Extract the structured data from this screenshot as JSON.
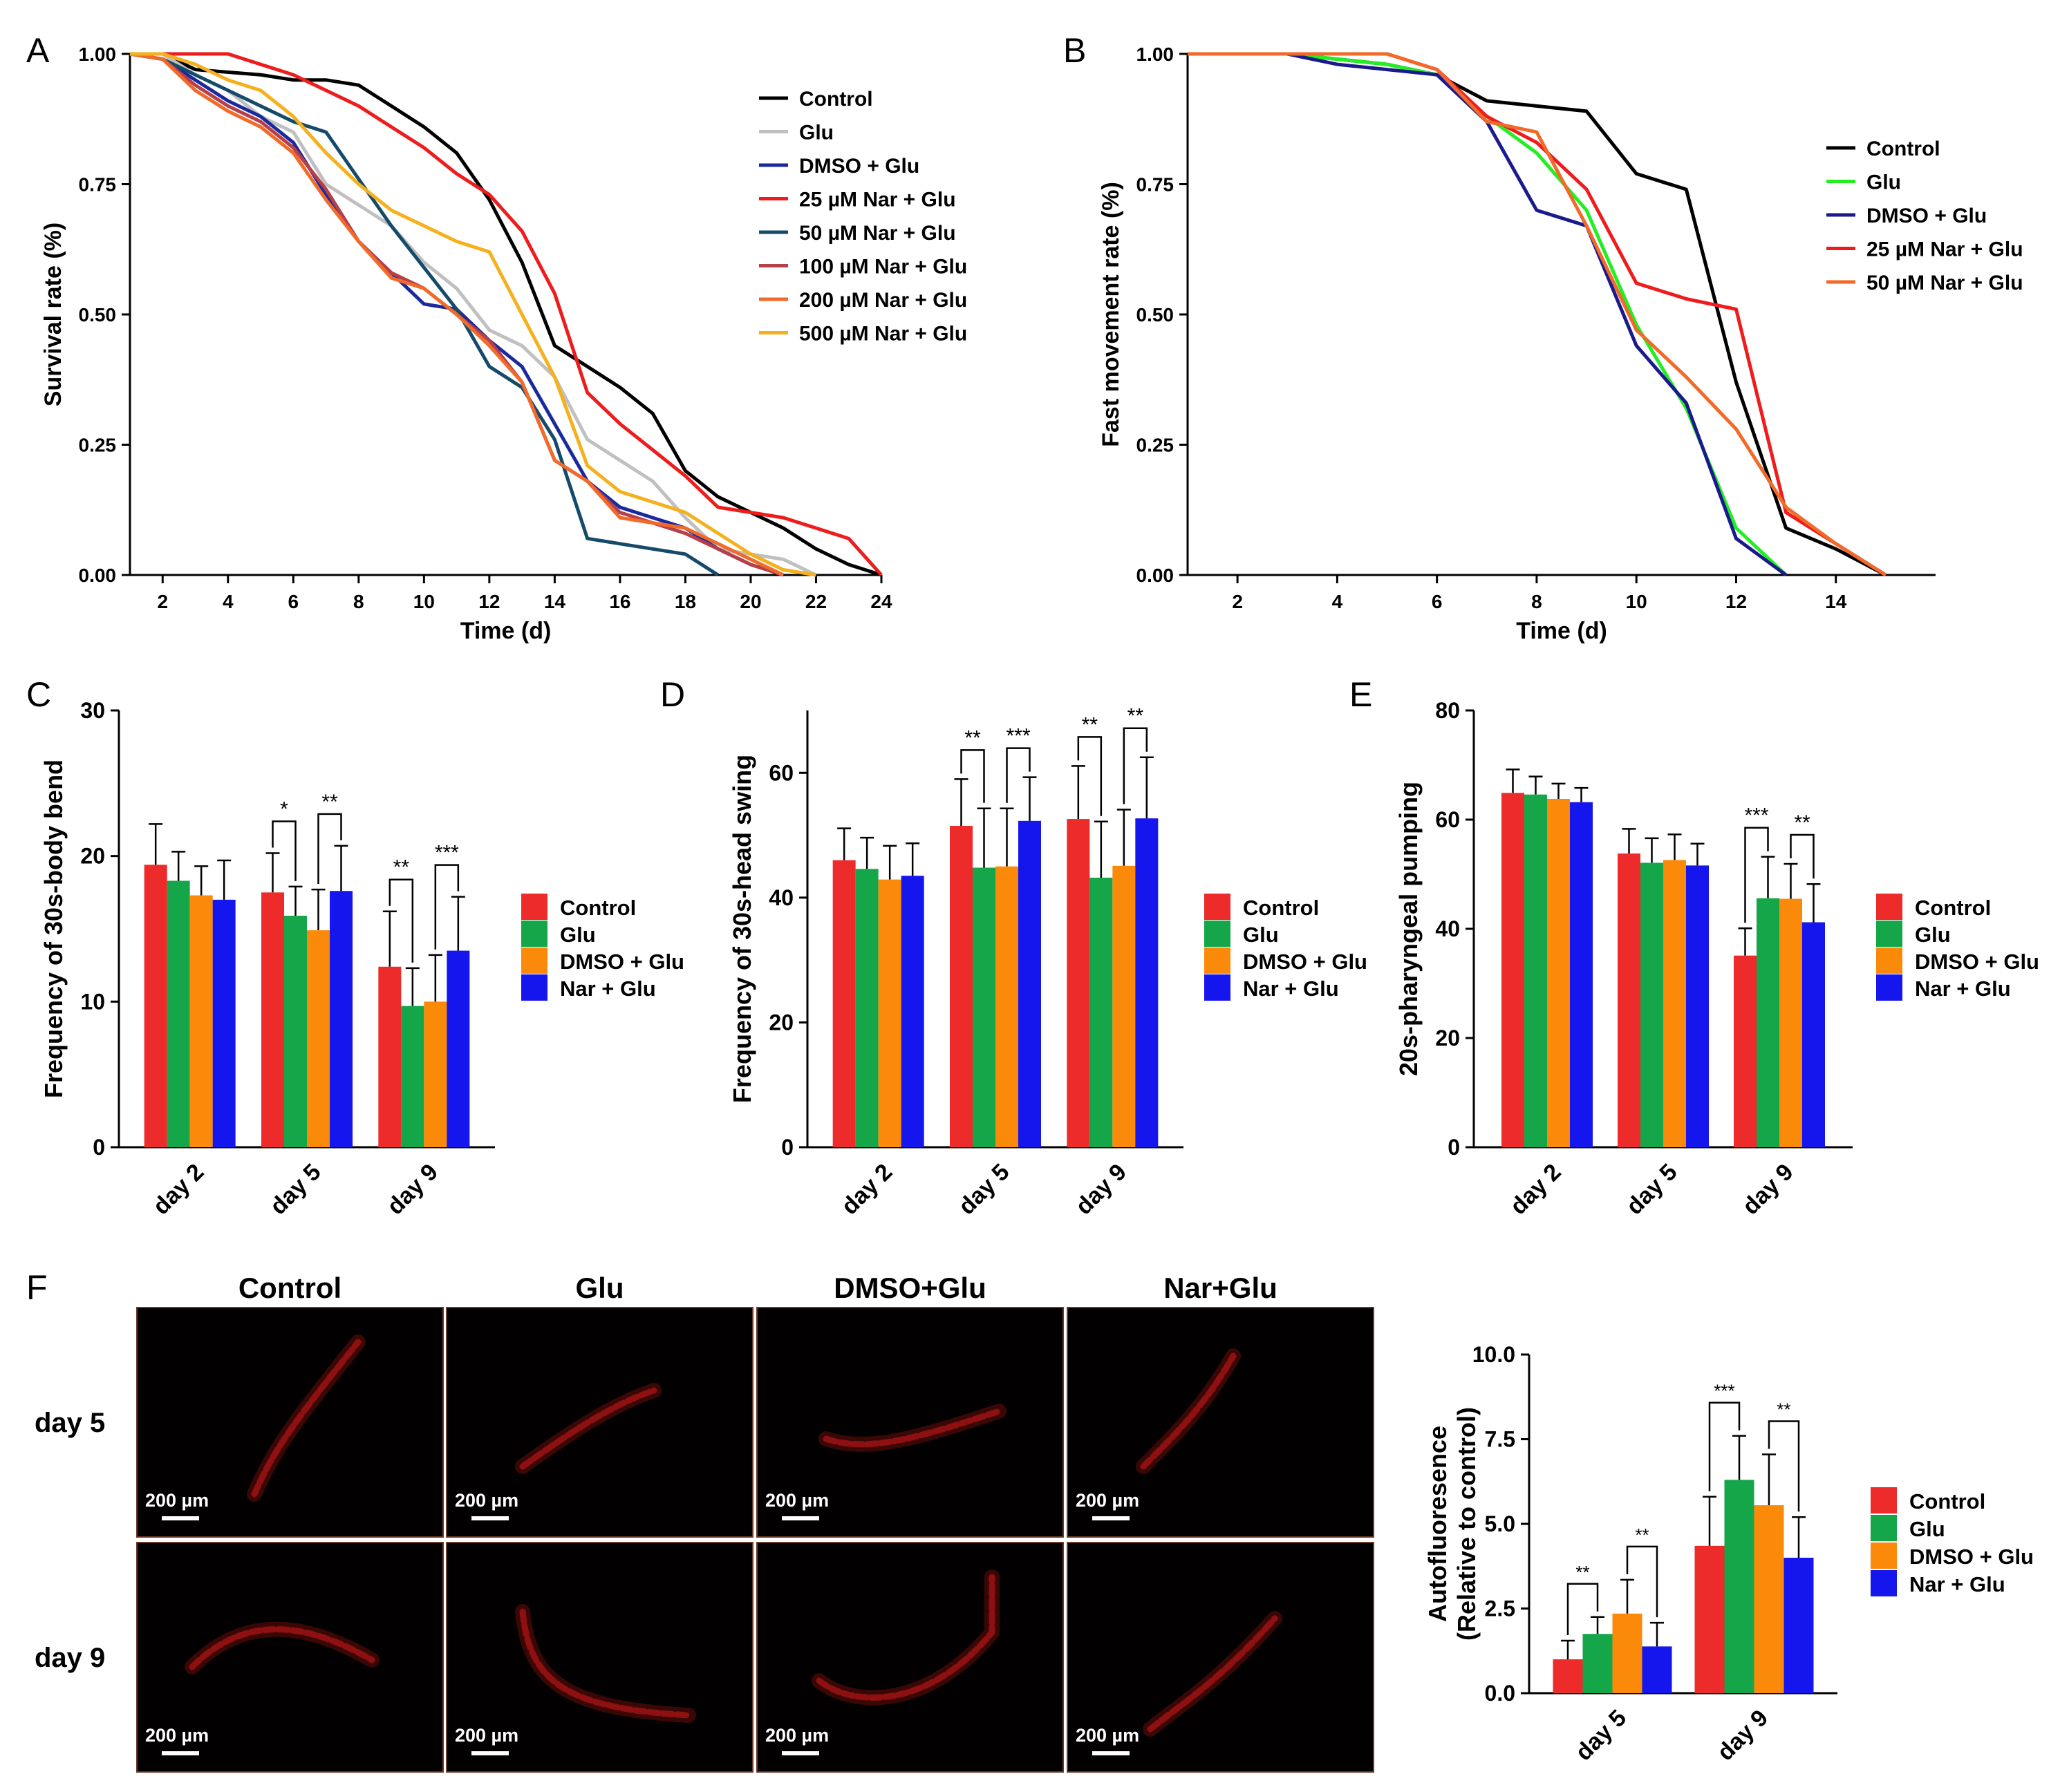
{
  "figure": {
    "panel_letters": [
      "A",
      "B",
      "C",
      "D",
      "E",
      "F"
    ],
    "micro": {
      "columns": [
        "Control",
        "Glu",
        "DMSO+Glu",
        "Nar+Glu"
      ],
      "rows": [
        "day 5",
        "day 9"
      ],
      "scale_bar": "200 µm"
    }
  },
  "chart_data": [
    {
      "panel": "A",
      "type": "line",
      "xlabel": "Time (d)",
      "ylabel": "Survival rate (%)",
      "xlim": [
        1,
        24
      ],
      "ylim": [
        0,
        1
      ],
      "xticks": [
        2,
        4,
        6,
        8,
        10,
        12,
        14,
        16,
        18,
        20,
        22,
        24
      ],
      "yticks": [
        0,
        0.25,
        0.5,
        0.75,
        1
      ],
      "ytick_labels": [
        "0.00",
        "0.25",
        "0.50",
        "0.75",
        "1.00"
      ],
      "legend_position": "top-right",
      "series": [
        {
          "name": "Control",
          "color": "#000000",
          "x": [
            1,
            2,
            3,
            5,
            6,
            7,
            8,
            9,
            10,
            11,
            12,
            13,
            14,
            15,
            16,
            17,
            18,
            19,
            20,
            21,
            22,
            23,
            24
          ],
          "y": [
            1,
            1,
            0.97,
            0.96,
            0.95,
            0.95,
            0.94,
            0.9,
            0.86,
            0.81,
            0.72,
            0.6,
            0.44,
            0.4,
            0.36,
            0.31,
            0.2,
            0.15,
            0.12,
            0.09,
            0.05,
            0.02,
            0
          ]
        },
        {
          "name": "Glu",
          "color": "#c0c0c0",
          "x": [
            1,
            2,
            3,
            4,
            5,
            6,
            7,
            8,
            9,
            10,
            11,
            12,
            13,
            14,
            15,
            16,
            17,
            18,
            19,
            20,
            21,
            22
          ],
          "y": [
            1,
            1,
            0.96,
            0.93,
            0.88,
            0.85,
            0.75,
            0.71,
            0.67,
            0.6,
            0.55,
            0.47,
            0.44,
            0.38,
            0.26,
            0.22,
            0.18,
            0.11,
            0.05,
            0.04,
            0.03,
            0
          ]
        },
        {
          "name": "DMSO + Glu",
          "color": "#1a2a9c",
          "x": [
            1,
            2,
            3,
            4,
            5,
            6,
            7,
            8,
            9,
            10,
            11,
            12,
            13,
            14,
            15,
            16,
            17,
            18,
            19,
            20,
            21
          ],
          "y": [
            1,
            0.99,
            0.95,
            0.91,
            0.88,
            0.83,
            0.73,
            0.64,
            0.58,
            0.52,
            0.51,
            0.45,
            0.4,
            0.29,
            0.18,
            0.13,
            0.11,
            0.09,
            0.05,
            0.02,
            0
          ]
        },
        {
          "name": "25 µM Nar + Glu",
          "color": "#ee1c1c",
          "x": [
            1,
            2,
            3,
            4,
            5,
            6,
            7,
            8,
            9,
            10,
            11,
            12,
            13,
            14,
            15,
            16,
            17,
            18,
            19,
            20,
            21,
            22,
            23,
            24
          ],
          "y": [
            1,
            1,
            1,
            1,
            0.98,
            0.96,
            0.93,
            0.9,
            0.86,
            0.82,
            0.77,
            0.73,
            0.66,
            0.54,
            0.35,
            0.29,
            0.24,
            0.19,
            0.13,
            0.12,
            0.11,
            0.09,
            0.07,
            0
          ]
        },
        {
          "name": "50 µM Nar + Glu",
          "color": "#154a6a",
          "x": [
            1,
            2,
            3,
            4,
            5,
            6,
            7,
            8,
            9,
            10,
            11,
            12,
            13,
            14,
            15,
            16,
            17,
            18,
            19
          ],
          "y": [
            1,
            0.99,
            0.96,
            0.93,
            0.9,
            0.87,
            0.85,
            0.76,
            0.67,
            0.59,
            0.51,
            0.4,
            0.36,
            0.26,
            0.07,
            0.06,
            0.05,
            0.04,
            0
          ]
        },
        {
          "name": "100 µM Nar + Glu",
          "color": "#b5404a",
          "x": [
            1,
            2,
            3,
            4,
            5,
            6,
            7,
            8,
            9,
            10,
            11,
            12,
            13,
            14,
            15,
            16,
            17,
            18,
            19,
            20,
            21
          ],
          "y": [
            1,
            0.99,
            0.94,
            0.9,
            0.87,
            0.82,
            0.74,
            0.64,
            0.58,
            0.55,
            0.5,
            0.45,
            0.37,
            0.22,
            0.18,
            0.12,
            0.1,
            0.08,
            0.05,
            0.02,
            0
          ]
        },
        {
          "name": "200 µM Nar + Glu",
          "color": "#f26a2a",
          "x": [
            1,
            2,
            3,
            4,
            5,
            6,
            7,
            8,
            9,
            10,
            11,
            12,
            13,
            14,
            15,
            16,
            17,
            18,
            19,
            20,
            21
          ],
          "y": [
            1,
            0.99,
            0.93,
            0.89,
            0.86,
            0.81,
            0.72,
            0.64,
            0.57,
            0.55,
            0.5,
            0.44,
            0.37,
            0.22,
            0.18,
            0.11,
            0.1,
            0.09,
            0.06,
            0.03,
            0
          ]
        },
        {
          "name": "500 µM Nar + Glu",
          "color": "#f5b01e",
          "x": [
            1,
            2,
            3,
            4,
            5,
            6,
            7,
            8,
            9,
            10,
            11,
            12,
            13,
            14,
            15,
            16,
            17,
            18,
            19,
            20,
            21,
            22
          ],
          "y": [
            1,
            1,
            0.98,
            0.95,
            0.93,
            0.88,
            0.81,
            0.75,
            0.7,
            0.67,
            0.64,
            0.62,
            0.5,
            0.38,
            0.21,
            0.16,
            0.14,
            0.12,
            0.08,
            0.04,
            0.01,
            0
          ]
        }
      ]
    },
    {
      "panel": "B",
      "type": "line",
      "xlabel": "Time (d)",
      "ylabel": "Fast movement rate (%)",
      "xlim": [
        1,
        16
      ],
      "ylim": [
        0,
        1
      ],
      "xticks": [
        2,
        4,
        6,
        8,
        10,
        12,
        14
      ],
      "yticks": [
        0,
        0.25,
        0.5,
        0.75,
        1
      ],
      "ytick_labels": [
        "0.00",
        "0.25",
        "0.50",
        "0.75",
        "1.00"
      ],
      "legend_position": "top-right",
      "series": [
        {
          "name": "Control",
          "color": "#000000",
          "x": [
            1,
            2,
            3,
            4,
            5,
            6,
            7,
            8,
            9,
            10,
            11,
            12,
            13,
            14,
            15
          ],
          "y": [
            1,
            1,
            1,
            0.99,
            0.98,
            0.96,
            0.91,
            0.9,
            0.89,
            0.77,
            0.74,
            0.37,
            0.09,
            0.05,
            0
          ]
        },
        {
          "name": "Glu",
          "color": "#22ee22",
          "x": [
            1,
            2,
            3,
            4,
            5,
            6,
            7,
            8,
            9,
            10,
            11,
            12,
            13
          ],
          "y": [
            1,
            1,
            1,
            0.99,
            0.98,
            0.96,
            0.88,
            0.81,
            0.7,
            0.48,
            0.32,
            0.09,
            0
          ]
        },
        {
          "name": "DMSO + Glu",
          "color": "#1a1a8c",
          "x": [
            1,
            2,
            3,
            4,
            5,
            6,
            7,
            8,
            9,
            10,
            11,
            12,
            13
          ],
          "y": [
            1,
            1,
            1,
            0.98,
            0.97,
            0.96,
            0.87,
            0.7,
            0.67,
            0.44,
            0.33,
            0.07,
            0
          ]
        },
        {
          "name": "25 µM Nar + Glu",
          "color": "#ee1c1c",
          "x": [
            1,
            2,
            3,
            4,
            5,
            6,
            7,
            8,
            9,
            10,
            11,
            12,
            13,
            14,
            15
          ],
          "y": [
            1,
            1,
            1,
            1,
            1,
            0.97,
            0.88,
            0.83,
            0.74,
            0.56,
            0.53,
            0.51,
            0.12,
            0.06,
            0
          ]
        },
        {
          "name": "50 µM Nar + Glu",
          "color": "#f26a2a",
          "x": [
            1,
            2,
            3,
            4,
            5,
            6,
            7,
            8,
            9,
            10,
            11,
            12,
            13,
            14,
            15
          ],
          "y": [
            1,
            1,
            1,
            1,
            1,
            0.97,
            0.87,
            0.85,
            0.67,
            0.47,
            0.38,
            0.28,
            0.13,
            0.06,
            0
          ]
        }
      ]
    },
    {
      "panel": "C",
      "type": "bar",
      "ylabel": "Frequency of 30s-body bend",
      "ylim": [
        0,
        30
      ],
      "yticks": [
        0,
        10,
        20,
        30
      ],
      "categories": [
        "day 2",
        "day 5",
        "day 9"
      ],
      "series": [
        {
          "name": "Control",
          "color": "#ee2b2b",
          "values": [
            19.4,
            17.5,
            12.4
          ],
          "errors": [
            2.8,
            2.7,
            3.8
          ]
        },
        {
          "name": "Glu",
          "color": "#16a64a",
          "values": [
            18.3,
            15.9,
            9.7
          ],
          "errors": [
            2.0,
            2.0,
            2.6
          ]
        },
        {
          "name": "DMSO + Glu",
          "color": "#fb8a0a",
          "values": [
            17.3,
            14.9,
            10.0
          ],
          "errors": [
            2.0,
            2.8,
            3.2
          ]
        },
        {
          "name": "Nar + Glu",
          "color": "#1515ee",
          "values": [
            17.0,
            17.6,
            13.5
          ],
          "errors": [
            2.7,
            3.1,
            3.7
          ]
        }
      ],
      "significance": [
        {
          "category": "day 5",
          "pair": "Control-Glu",
          "label": "*"
        },
        {
          "category": "day 5",
          "pair": "DMSO-Nar",
          "label": "**"
        },
        {
          "category": "day 9",
          "pair": "Control-Glu",
          "label": "**"
        },
        {
          "category": "day 9",
          "pair": "DMSO-Nar",
          "label": "***"
        }
      ]
    },
    {
      "panel": "D",
      "type": "bar",
      "ylabel": "Frequency of 30s-head swing",
      "ylim": [
        0,
        70
      ],
      "yticks": [
        0,
        20,
        40,
        60
      ],
      "categories": [
        "day 2",
        "day 5",
        "day 9"
      ],
      "series": [
        {
          "name": "Control",
          "color": "#ee2b2b",
          "values": [
            46.0,
            51.5,
            52.6
          ],
          "errors": [
            5.1,
            7.5,
            8.5
          ]
        },
        {
          "name": "Glu",
          "color": "#16a64a",
          "values": [
            44.6,
            44.8,
            43.2
          ],
          "errors": [
            5.0,
            9.5,
            9.0
          ]
        },
        {
          "name": "DMSO + Glu",
          "color": "#fb8a0a",
          "values": [
            42.9,
            45.0,
            45.1
          ],
          "errors": [
            5.4,
            9.3,
            9.0
          ]
        },
        {
          "name": "Nar + Glu",
          "color": "#1515ee",
          "values": [
            43.5,
            52.3,
            52.7
          ],
          "errors": [
            5.2,
            7.0,
            9.8
          ]
        }
      ],
      "significance": [
        {
          "category": "day 5",
          "pair": "Control-Glu",
          "label": "**"
        },
        {
          "category": "day 5",
          "pair": "DMSO-Nar",
          "label": "***"
        },
        {
          "category": "day 9",
          "pair": "Control-Glu",
          "label": "**"
        },
        {
          "category": "day 9",
          "pair": "DMSO-Nar",
          "label": "**"
        }
      ]
    },
    {
      "panel": "E",
      "type": "bar",
      "ylabel": "20s-pharyngeal pumping",
      "ylim": [
        0,
        80
      ],
      "yticks": [
        0,
        20,
        40,
        60,
        80
      ],
      "categories": [
        "day 2",
        "day 5",
        "day 9"
      ],
      "series": [
        {
          "name": "Control",
          "color": "#ee2b2b",
          "values": [
            64.9,
            53.8,
            35.1
          ],
          "errors": [
            4.3,
            4.5,
            5.0
          ]
        },
        {
          "name": "Glu",
          "color": "#16a64a",
          "values": [
            64.6,
            52.1,
            45.6
          ],
          "errors": [
            3.3,
            4.5,
            7.6
          ]
        },
        {
          "name": "DMSO + Glu",
          "color": "#fb8a0a",
          "values": [
            63.8,
            52.6,
            45.5
          ],
          "errors": [
            2.8,
            4.7,
            6.4
          ]
        },
        {
          "name": "Nar + Glu",
          "color": "#1515ee",
          "values": [
            63.2,
            51.6,
            41.2
          ],
          "errors": [
            2.6,
            4.0,
            7.0
          ]
        }
      ],
      "significance": [
        {
          "category": "day 9",
          "pair": "Control-Glu",
          "label": "***"
        },
        {
          "category": "day 9",
          "pair": "DMSO-Nar",
          "label": "**"
        }
      ]
    },
    {
      "panel": "F",
      "type": "bar",
      "ylabel": "Autofluoresence (Relative to control)",
      "ylabel_lines": [
        "Autofluoresence",
        "(Relative to control)"
      ],
      "ylim": [
        0,
        10
      ],
      "yticks": [
        0,
        2.5,
        5,
        7.5,
        10
      ],
      "ytick_labels": [
        "0.0",
        "2.5",
        "5.0",
        "7.5",
        "10.0"
      ],
      "categories": [
        "day 5",
        "day 9"
      ],
      "series": [
        {
          "name": "Control",
          "color": "#ee2b2b",
          "values": [
            1.0,
            4.35
          ],
          "errors": [
            0.55,
            1.45
          ]
        },
        {
          "name": "Glu",
          "color": "#16a64a",
          "values": [
            1.75,
            6.3
          ],
          "errors": [
            0.5,
            1.3
          ]
        },
        {
          "name": "DMSO + Glu",
          "color": "#fb8a0a",
          "values": [
            2.35,
            5.55
          ],
          "errors": [
            1.0,
            1.5
          ]
        },
        {
          "name": "Nar + Glu",
          "color": "#1515ee",
          "values": [
            1.38,
            4.0
          ],
          "errors": [
            0.7,
            1.2
          ]
        }
      ],
      "significance": [
        {
          "category": "day 5",
          "pair": "Control-Glu",
          "label": "**"
        },
        {
          "category": "day 5",
          "pair": "DMSO-Nar",
          "label": "**"
        },
        {
          "category": "day 9",
          "pair": "Control-Glu",
          "label": "***"
        },
        {
          "category": "day 9",
          "pair": "DMSO-Nar",
          "label": "**"
        }
      ]
    }
  ]
}
